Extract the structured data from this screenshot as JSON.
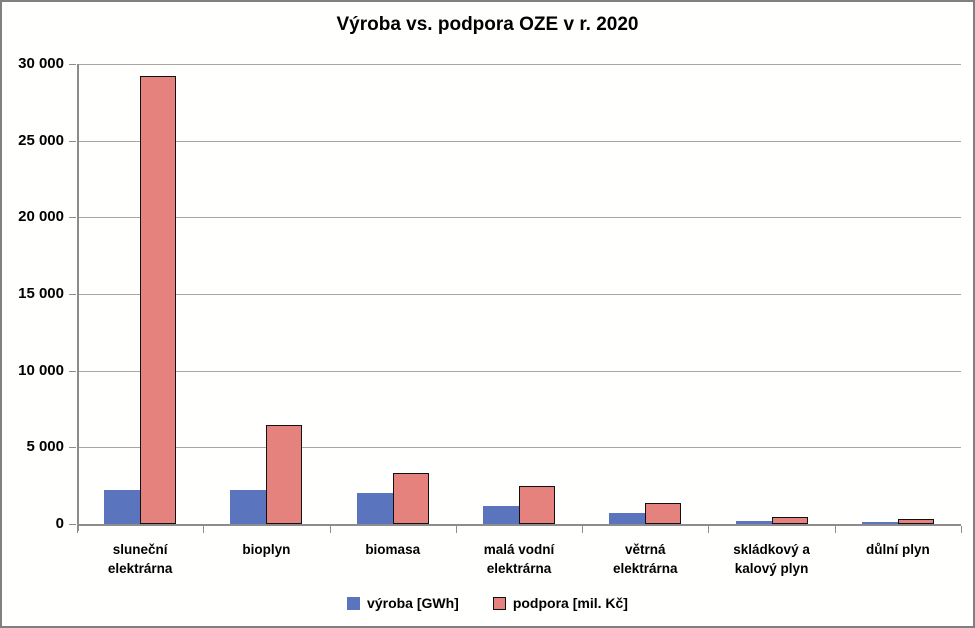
{
  "frame": {
    "background": "#FFFFFE",
    "border_color": "#808080"
  },
  "chart_data": {
    "type": "bar",
    "title": "Výroba vs. podpora OZE v r. 2020",
    "categories": [
      "sluneční\nelektrárna",
      "bioplyn",
      "biomasa",
      "malá vodní\nelektrárna",
      "větrná\nelektrárna",
      "skládkový a\nkalový plyn",
      "důlní plyn"
    ],
    "series": [
      {
        "name": "výroba [GWh]",
        "color": "#5B74BE",
        "border_color": "#44558F",
        "values": [
          2200,
          2250,
          2000,
          1200,
          700,
          200,
          150
        ]
      },
      {
        "name": "podpora [mil. Kč]",
        "color": "#E5827D",
        "border_color": "#111111",
        "values": [
          29200,
          6450,
          3300,
          2450,
          1400,
          450,
          300
        ]
      }
    ],
    "xlabel": "",
    "ylabel": "",
    "ylim": [
      0,
      30000
    ],
    "yticks": [
      {
        "value": 0,
        "label": "0"
      },
      {
        "value": 5000,
        "label": "5 000"
      },
      {
        "value": 10000,
        "label": "10 000"
      },
      {
        "value": 15000,
        "label": "15 000"
      },
      {
        "value": 20000,
        "label": "20 000"
      },
      {
        "value": 25000,
        "label": "25 000"
      },
      {
        "value": 30000,
        "label": "30 000"
      }
    ],
    "grid": "horizontal",
    "gridline_color": "#A6A6A6",
    "axis_color": "#8C8C8C",
    "legend_position": "bottom"
  }
}
